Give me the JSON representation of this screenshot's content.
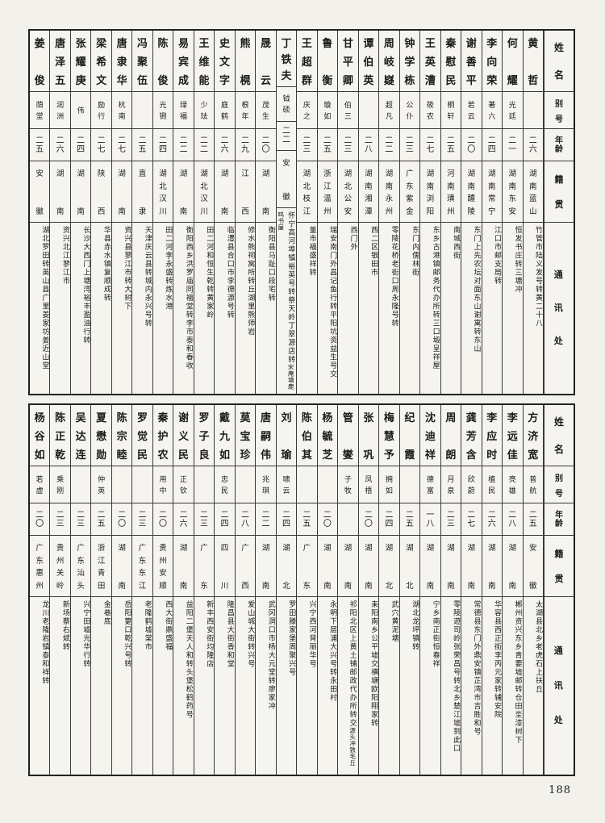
{
  "page": {
    "number": "188"
  },
  "headers": {
    "name": "姓名",
    "alias": "别号",
    "age": "年龄",
    "origin": "籍贯",
    "address": "通讯处"
  },
  "tables": [
    {
      "people": [
        {
          "name": "黄哲",
          "alias": "",
          "age": "二六",
          "origin": "湖南蓝山",
          "address": "竹管市陆义发号转黄二十八",
          "address2": ""
        },
        {
          "name": "何耀",
          "alias": "光廷",
          "age": "二一",
          "origin": "湖南东安",
          "address": "恒发书庄转三塘冲",
          "address2": ""
        },
        {
          "name": "李向荣",
          "alias": "著六",
          "age": "二四",
          "origin": "湖南常宁",
          "address": "江口市邮支局转",
          "address2": ""
        },
        {
          "name": "谢善平",
          "alias": "若云",
          "age": "二〇",
          "origin": "湖南醴陵",
          "address": "东门上先农坛对面东山谢寓转东山",
          "address2": ""
        },
        {
          "name": "秦慰民",
          "alias": "桐轩",
          "age": "二五",
          "origin": "河南璜州",
          "address": "南城西街",
          "address2": ""
        },
        {
          "name": "王英漕",
          "alias": "筱农",
          "age": "二七",
          "origin": "湖南浏阳",
          "address": "东乡古港镇邮务代办所转三口塅呈祥屋",
          "address2": ""
        },
        {
          "name": "钟学栋",
          "alias": "公仆",
          "age": "二三",
          "origin": "广东紫金",
          "address": "东门内儒林街",
          "address2": ""
        },
        {
          "name": "周岐嶷",
          "alias": "超凡",
          "age": "二二",
          "origin": "湖南永州",
          "address": "零陵花桥老街口周永隆号转",
          "address2": ""
        },
        {
          "name": "谭伯英",
          "alias": "",
          "age": "二八",
          "origin": "湖南湘潭",
          "address": "西二区银田市",
          "address2": ""
        },
        {
          "name": "甘平卿",
          "alias": "伯三",
          "age": "二三",
          "origin": "湖北公安",
          "address": "西门外",
          "address2": ""
        },
        {
          "name": "鲁衡",
          "alias": "璇如",
          "age": "二五",
          "origin": "浙江温州",
          "address": "瑞安南门外昌记鱼行转平阳坑资益生号交",
          "address2": ""
        },
        {
          "name": "王超群",
          "alias": "庆之",
          "age": "二三",
          "origin": "湖北枝江",
          "address": "董市福盛祥转",
          "address2": ""
        },
        {
          "name": "丁铁夫",
          "alias": "钺硕",
          "age": "二二",
          "origin": "安徽",
          "address": "怀宁高河埠镇裕英号转祭天岭丁翠源店转",
          "address2": "宋庵塘鹿鸣书屋"
        },
        {
          "name": "晟云",
          "alias": "茂生",
          "age": "二〇",
          "origin": "湖南",
          "address": "衡阳县马趾口段宅转",
          "address2": ""
        },
        {
          "name": "熊榥",
          "alias": "根年",
          "age": "二九",
          "origin": "江西",
          "address": "修水熊祠窝所转丘湖里熊师岩",
          "address2": ""
        },
        {
          "name": "史文字",
          "alias": "庭鹤",
          "age": "二六",
          "origin": "湖南",
          "address": "临澧县合口市李德源号转",
          "address2": ""
        },
        {
          "name": "王维能",
          "alias": "少珐",
          "age": "二二",
          "origin": "湖北汉川",
          "address": "田二河和恒生乾转黄家岭",
          "address2": ""
        },
        {
          "name": "易宾成",
          "alias": "琭福",
          "age": "二二",
          "origin": "湖南",
          "address": "衡阳西乡洪罗庙同福堂转李市泰和春收",
          "address2": ""
        },
        {
          "name": "陈俊",
          "alias": "光铏",
          "age": "二四",
          "origin": "湖北汉川",
          "address": "田二河李永盛转炼水港",
          "address2": ""
        },
        {
          "name": "冯聚伍",
          "alias": "",
          "age": "二五",
          "origin": "直隶",
          "address": "天津庆云县转城内永兴号转",
          "address2": ""
        },
        {
          "name": "唐隶华",
          "alias": "杭南",
          "age": "二七",
          "origin": "湖南",
          "address": "资兴县蓼江市转大树下",
          "address2": ""
        },
        {
          "name": "梁希文",
          "alias": "励行",
          "age": "二七",
          "origin": "陕西",
          "address": "华县赤水镇复顺成转",
          "address2": ""
        },
        {
          "name": "张耀庚",
          "alias": "伟",
          "age": "二四",
          "origin": "湖南",
          "address": "长沙大西门上塘湾裕丰盈油行转",
          "address2": ""
        },
        {
          "name": "唐泽五",
          "alias": "润洲",
          "age": "二六",
          "origin": "湖南",
          "address": "资兴北江蓼江市",
          "address2": ""
        },
        {
          "name": "姜俊",
          "alias": "荫堂",
          "age": "二五",
          "origin": "安徽",
          "address": "湖北罗田转英山县广里姜家坊姜近山堂",
          "address2": ""
        }
      ]
    },
    {
      "people": [
        {
          "name": "方济宽",
          "alias": "普航",
          "age": "二五",
          "origin": "安徽",
          "address": "太湖县北乡老虎石上扶丘",
          "address2": ""
        },
        {
          "name": "李远佳",
          "alias": "亮雄",
          "age": "二八",
          "origin": "湖南",
          "address": "郴州资兴东乡青要墟邮转仓田坔漆树下",
          "address2": ""
        },
        {
          "name": "李应时",
          "alias": "植民",
          "age": "二六",
          "origin": "湖南",
          "address": "华容县西正街李丙元家转辅安院",
          "address2": ""
        },
        {
          "name": "龚芳含",
          "alias": "欣蔚",
          "age": "二七",
          "origin": "湖南",
          "address": "常德县东门外鼎安镇芷湾市吉胜和号",
          "address2": ""
        },
        {
          "name": "周朗",
          "alias": "月泉",
          "age": "二三",
          "origin": "湖南",
          "address": "零陵遊司岭张荣昌号转北乡楚江墟到此口",
          "address2": ""
        },
        {
          "name": "沈迪祥",
          "alias": "德富",
          "age": "一八",
          "origin": "湖南",
          "address": "宁乡南正街恒春祥",
          "address2": ""
        },
        {
          "name": "纪霞",
          "alias": "",
          "age": "二五",
          "origin": "湖北",
          "address": "湖北龙坪镇转",
          "address2": ""
        },
        {
          "name": "梅慧予",
          "alias": "拥如",
          "age": "二四",
          "origin": "湖北",
          "address": "武穴黄泥塘",
          "address2": ""
        },
        {
          "name": "张巩",
          "alias": "凤梧",
          "age": "二〇",
          "origin": "湖南",
          "address": "耒阳南乡公平墟交横塘欧阳翔家转",
          "address2": ""
        },
        {
          "name": "管燮",
          "alias": "子牧",
          "age": "",
          "origin": "湖南",
          "address": "祁阳北区上黄土铺邮政代办所转交",
          "address2": "源头冲敩毛丘"
        },
        {
          "name": "杨毓芝",
          "alias": "",
          "age": "二〇",
          "origin": "湖南",
          "address": "永明下层浦大兴号转永田村",
          "address2": ""
        },
        {
          "name": "陈伯其",
          "alias": "",
          "age": "二五",
          "origin": "广东",
          "address": "兴宁西河背丽华号",
          "address2": ""
        },
        {
          "name": "刘瑜",
          "alias": "啸云",
          "age": "二四",
          "origin": "湖北",
          "address": "罗田滕家堡周聚兴号",
          "address2": ""
        },
        {
          "name": "唐嗣伟",
          "alias": "兆琪",
          "age": "二二",
          "origin": "湖南",
          "address": "武冈洞口市杨大元堂转廖家冲",
          "address2": ""
        },
        {
          "name": "莫宝珍",
          "alias": "",
          "age": "二八",
          "origin": "广西",
          "address": "爱山城大街转兴号",
          "address2": ""
        },
        {
          "name": "戴九如",
          "alias": "忠民",
          "age": "二四",
          "origin": "四川",
          "address": "隆昌县大街香和堂",
          "address2": ""
        },
        {
          "name": "罗子良",
          "alias": "",
          "age": "二三",
          "origin": "广东",
          "address": "新丰西安街均隆店",
          "address2": ""
        },
        {
          "name": "谢义民",
          "alias": "正钦",
          "age": "二六",
          "origin": "湖南",
          "address": "益阳二堡天人和转头堡松鹤药号",
          "address2": ""
        },
        {
          "name": "秦护农",
          "alias": "用中",
          "age": "二〇",
          "origin": "贵州安顺",
          "address": "西大街鼎盛福",
          "address2": ""
        },
        {
          "name": "罗觉民",
          "alias": "",
          "age": "二三",
          "origin": "广东东江",
          "address": "老隆鹤墟棠市",
          "address2": ""
        },
        {
          "name": "陈宗睦",
          "alias": "",
          "age": "二〇",
          "origin": "湖南",
          "address": "岳阳筻口乾兴号转",
          "address2": ""
        },
        {
          "name": "夏懋勋",
          "alias": "仲英",
          "age": "二五",
          "origin": "浙江青田",
          "address": "金巷底",
          "address2": ""
        },
        {
          "name": "吴达连",
          "alias": "",
          "age": "二三",
          "origin": "广东汕头",
          "address": "兴宁田墟光华行转",
          "address2": ""
        },
        {
          "name": "陈正乾",
          "alias": "乘刚",
          "age": "二三",
          "origin": "贵州关岭",
          "address": "新场蔡右斌转",
          "address2": ""
        },
        {
          "name": "杨谷如",
          "alias": "若虚",
          "age": "二〇",
          "origin": "广东惠州",
          "address": "龙川老隆岩镇泰和祥转",
          "address2": ""
        }
      ]
    }
  ]
}
